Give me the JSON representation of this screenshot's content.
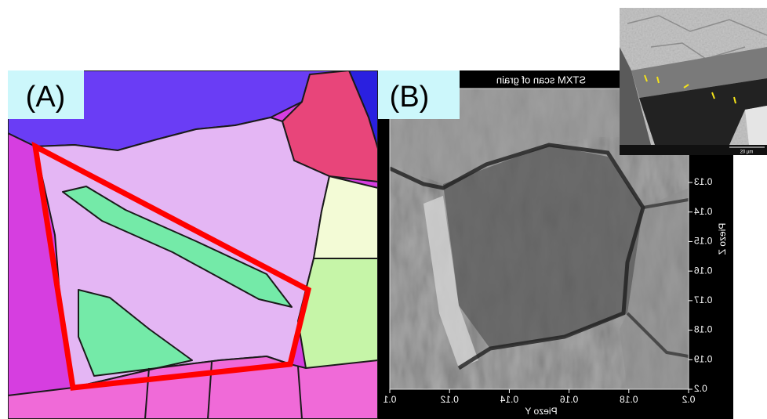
{
  "panels": [
    {
      "label": "(A)"
    },
    {
      "label": "(B)",
      "title": "STXM scan of grain",
      "x_axis": {
        "label": "Piezo Y",
        "ticks": [
          "0.1",
          "0.12",
          "0.14",
          "0.16",
          "0.18",
          "0.2"
        ]
      },
      "y_axis": {
        "label": "Piezo Z",
        "ticks": [
          "0.13",
          "0.14",
          "0.15",
          "0.16",
          "0.17",
          "0.18",
          "0.19",
          "0.2"
        ]
      }
    }
  ],
  "inset": {
    "scale_bar": "20 µm"
  }
}
